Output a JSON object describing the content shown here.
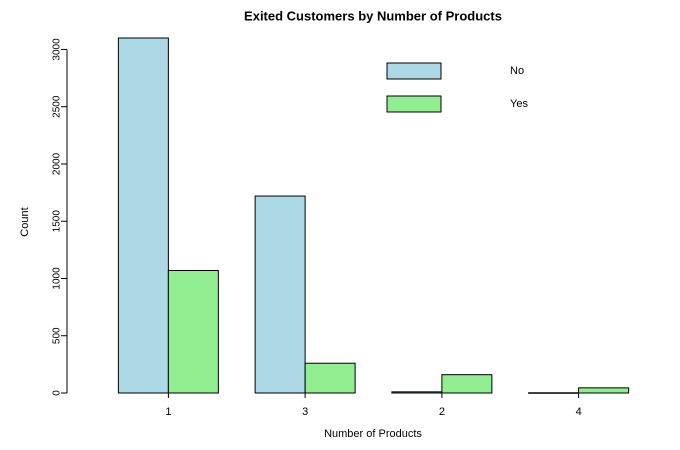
{
  "chart_data": {
    "type": "bar",
    "title": "Exited Customers by Number of Products",
    "x_label": "Number of Products",
    "y_label": "Count",
    "categories": [
      "1",
      "3",
      "2",
      "4"
    ],
    "series": [
      {
        "name": "No",
        "color": "#add8e6",
        "values": [
          3100,
          1720,
          10,
          2
        ]
      },
      {
        "name": "Yes",
        "color": "#90ee90",
        "values": [
          1070,
          260,
          160,
          45
        ]
      }
    ],
    "ylim": [
      0,
      3100
    ],
    "yticks": [
      0,
      500,
      1000,
      1500,
      2000,
      2500,
      3000
    ],
    "legend": "top-right",
    "grid": false
  }
}
